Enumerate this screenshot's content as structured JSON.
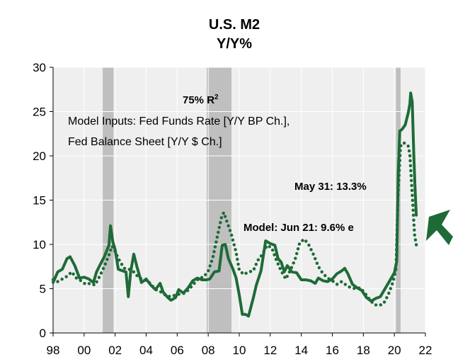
{
  "chart_data": {
    "type": "line",
    "title": "U.S. M2",
    "subtitle": "Y/Y%",
    "xlabel": "",
    "ylabel": "",
    "xlim": [
      1998,
      2022
    ],
    "ylim": [
      0,
      30
    ],
    "x_ticks": [
      1998,
      2000,
      2002,
      2004,
      2006,
      2008,
      2010,
      2012,
      2014,
      2016,
      2018,
      2020,
      2022
    ],
    "x_tick_labels": [
      "98",
      "00",
      "02",
      "04",
      "06",
      "08",
      "10",
      "12",
      "14",
      "16",
      "18",
      "20",
      "22"
    ],
    "y_ticks": [
      0,
      5,
      10,
      15,
      20,
      25,
      30
    ],
    "y_tick_labels": [
      "0",
      "5",
      "10",
      "15",
      "20",
      "25",
      "30"
    ],
    "grid": true,
    "recession_shading": [
      [
        2001.2,
        2001.9
      ],
      [
        2007.9,
        2009.5
      ],
      [
        2020.1,
        2020.4
      ]
    ],
    "colors": {
      "series": "#1e6b37",
      "recession": "#bfbfbf",
      "plot_bg": "#efefef",
      "grid": "#ffffff",
      "arrow": "#1e6b37"
    },
    "series": [
      {
        "style": "solid",
        "points": [
          [
            1998.0,
            5.7
          ],
          [
            1998.3,
            6.9
          ],
          [
            1998.6,
            7.2
          ],
          [
            1998.9,
            8.4
          ],
          [
            1999.1,
            8.6
          ],
          [
            1999.4,
            7.6
          ],
          [
            1999.7,
            6.2
          ],
          [
            2000.0,
            6.3
          ],
          [
            2000.3,
            6.1
          ],
          [
            2000.6,
            5.7
          ],
          [
            2000.8,
            6.9
          ],
          [
            2001.0,
            7.6
          ],
          [
            2001.3,
            8.6
          ],
          [
            2001.6,
            9.9
          ],
          [
            2001.7,
            12.1
          ],
          [
            2001.85,
            10.3
          ],
          [
            2002.0,
            9.4
          ],
          [
            2002.2,
            7.2
          ],
          [
            2002.5,
            7.0
          ],
          [
            2002.7,
            6.9
          ],
          [
            2002.85,
            4.1
          ],
          [
            2003.0,
            6.9
          ],
          [
            2003.2,
            8.9
          ],
          [
            2003.4,
            7.5
          ],
          [
            2003.7,
            5.7
          ],
          [
            2004.0,
            6.1
          ],
          [
            2004.3,
            5.4
          ],
          [
            2004.6,
            4.9
          ],
          [
            2004.9,
            5.6
          ],
          [
            2005.1,
            4.6
          ],
          [
            2005.4,
            4.0
          ],
          [
            2005.6,
            3.7
          ],
          [
            2005.9,
            4.0
          ],
          [
            2006.1,
            4.9
          ],
          [
            2006.4,
            4.5
          ],
          [
            2006.7,
            5.1
          ],
          [
            2007.0,
            5.9
          ],
          [
            2007.3,
            6.2
          ],
          [
            2007.6,
            6.0
          ],
          [
            2007.9,
            6.0
          ],
          [
            2008.1,
            6.1
          ],
          [
            2008.4,
            6.9
          ],
          [
            2008.7,
            7.0
          ],
          [
            2008.9,
            9.9
          ],
          [
            2009.1,
            10.0
          ],
          [
            2009.3,
            8.4
          ],
          [
            2009.6,
            7.2
          ],
          [
            2009.8,
            6.2
          ],
          [
            2010.0,
            4.3
          ],
          [
            2010.2,
            2.1
          ],
          [
            2010.4,
            2.1
          ],
          [
            2010.6,
            1.9
          ],
          [
            2010.9,
            3.9
          ],
          [
            2011.1,
            5.4
          ],
          [
            2011.4,
            7.0
          ],
          [
            2011.7,
            10.4
          ],
          [
            2012.0,
            10.1
          ],
          [
            2012.3,
            9.9
          ],
          [
            2012.5,
            8.4
          ],
          [
            2012.7,
            8.0
          ],
          [
            2012.9,
            6.9
          ],
          [
            2013.1,
            7.6
          ],
          [
            2013.4,
            6.9
          ],
          [
            2013.7,
            6.8
          ],
          [
            2014.0,
            6.0
          ],
          [
            2014.3,
            6.0
          ],
          [
            2014.6,
            5.9
          ],
          [
            2014.9,
            5.6
          ],
          [
            2015.1,
            6.2
          ],
          [
            2015.4,
            5.9
          ],
          [
            2015.7,
            5.8
          ],
          [
            2016.0,
            6.1
          ],
          [
            2016.3,
            6.7
          ],
          [
            2016.6,
            7.0
          ],
          [
            2016.8,
            7.3
          ],
          [
            2017.0,
            6.7
          ],
          [
            2017.3,
            5.5
          ],
          [
            2017.6,
            5.1
          ],
          [
            2017.9,
            4.8
          ],
          [
            2018.2,
            4.0
          ],
          [
            2018.5,
            3.6
          ],
          [
            2018.8,
            3.9
          ],
          [
            2019.1,
            4.1
          ],
          [
            2019.4,
            5.0
          ],
          [
            2019.7,
            5.9
          ],
          [
            2020.0,
            6.8
          ],
          [
            2020.15,
            8.1
          ],
          [
            2020.25,
            17.9
          ],
          [
            2020.35,
            22.8
          ],
          [
            2020.5,
            23.0
          ],
          [
            2020.7,
            23.5
          ],
          [
            2020.9,
            24.9
          ],
          [
            2021.0,
            25.9
          ],
          [
            2021.05,
            27.1
          ],
          [
            2021.15,
            26.1
          ],
          [
            2021.25,
            20.2
          ],
          [
            2021.32,
            16.9
          ],
          [
            2021.41,
            13.3
          ]
        ]
      },
      {
        "style": "dotted",
        "points": [
          [
            1998.0,
            6.0
          ],
          [
            1998.3,
            5.8
          ],
          [
            1998.6,
            6.1
          ],
          [
            1998.9,
            6.4
          ],
          [
            1999.2,
            6.9
          ],
          [
            1999.5,
            6.2
          ],
          [
            1999.8,
            5.9
          ],
          [
            2000.1,
            5.5
          ],
          [
            2000.4,
            5.6
          ],
          [
            2000.7,
            5.4
          ],
          [
            2001.0,
            6.4
          ],
          [
            2001.3,
            7.5
          ],
          [
            2001.6,
            8.8
          ],
          [
            2001.8,
            9.8
          ],
          [
            2002.0,
            9.2
          ],
          [
            2002.3,
            8.1
          ],
          [
            2002.6,
            7.3
          ],
          [
            2002.9,
            7.2
          ],
          [
            2003.2,
            6.9
          ],
          [
            2003.5,
            6.3
          ],
          [
            2003.8,
            6.0
          ],
          [
            2004.1,
            5.9
          ],
          [
            2004.4,
            5.3
          ],
          [
            2004.7,
            4.8
          ],
          [
            2005.0,
            4.6
          ],
          [
            2005.3,
            4.2
          ],
          [
            2005.6,
            4.1
          ],
          [
            2005.9,
            4.3
          ],
          [
            2006.2,
            4.4
          ],
          [
            2006.5,
            4.5
          ],
          [
            2006.8,
            5.0
          ],
          [
            2007.1,
            5.6
          ],
          [
            2007.4,
            6.2
          ],
          [
            2007.7,
            6.3
          ],
          [
            2008.0,
            7.0
          ],
          [
            2008.3,
            8.5
          ],
          [
            2008.6,
            11.0
          ],
          [
            2008.85,
            13.0
          ],
          [
            2009.0,
            13.6
          ],
          [
            2009.2,
            12.6
          ],
          [
            2009.5,
            11.1
          ],
          [
            2009.8,
            9.1
          ],
          [
            2010.0,
            7.1
          ],
          [
            2010.3,
            6.6
          ],
          [
            2010.6,
            6.9
          ],
          [
            2010.9,
            7.0
          ],
          [
            2011.2,
            8.2
          ],
          [
            2011.5,
            8.9
          ],
          [
            2011.8,
            9.9
          ],
          [
            2012.1,
            9.6
          ],
          [
            2012.4,
            8.2
          ],
          [
            2012.7,
            7.0
          ],
          [
            2013.0,
            6.1
          ],
          [
            2013.3,
            7.1
          ],
          [
            2013.6,
            8.3
          ],
          [
            2013.9,
            10.2
          ],
          [
            2014.2,
            10.6
          ],
          [
            2014.5,
            9.9
          ],
          [
            2014.8,
            8.8
          ],
          [
            2015.1,
            7.5
          ],
          [
            2015.4,
            6.7
          ],
          [
            2015.7,
            6.2
          ],
          [
            2016.0,
            5.9
          ],
          [
            2016.3,
            5.5
          ],
          [
            2016.6,
            5.8
          ],
          [
            2016.9,
            5.4
          ],
          [
            2017.2,
            5.1
          ],
          [
            2017.5,
            5.0
          ],
          [
            2017.8,
            5.1
          ],
          [
            2018.1,
            4.5
          ],
          [
            2018.4,
            3.8
          ],
          [
            2018.7,
            3.2
          ],
          [
            2019.0,
            3.1
          ],
          [
            2019.3,
            3.3
          ],
          [
            2019.6,
            4.3
          ],
          [
            2019.9,
            5.7
          ],
          [
            2020.1,
            7.2
          ],
          [
            2020.25,
            16.1
          ],
          [
            2020.4,
            21.1
          ],
          [
            2020.6,
            21.5
          ],
          [
            2020.8,
            21.2
          ],
          [
            2020.9,
            21.1
          ],
          [
            2021.0,
            20.1
          ],
          [
            2021.1,
            17.1
          ],
          [
            2021.2,
            14.1
          ],
          [
            2021.3,
            11.1
          ],
          [
            2021.45,
            9.6
          ]
        ]
      }
    ],
    "annotations": {
      "r2": "75% R",
      "r2_sup": "2",
      "inputs_line1": "Model Inputs: Fed Funds Rate [Y/Y BP Ch.],",
      "inputs_line2": "Fed Balance Sheet [Y/Y $ Ch.]",
      "actual_label": "May 31: 13.3%",
      "model_label": "Model:  Jun 21: 9.6% e"
    }
  }
}
